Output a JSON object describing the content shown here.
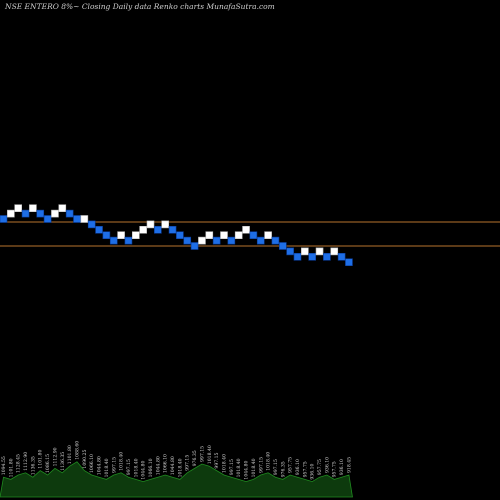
{
  "header": {
    "title": "NSE ENTERO 8%~  Closing Daily data  Renko  charts MunafaSutra.com"
  },
  "colors": {
    "background": "#000000",
    "up_brick": "#ffffff",
    "down_brick": "#1e6ee6",
    "down_brick_border": "#0a3d99",
    "support_line": "#b8732e",
    "volume_fill": "#0d3a0d",
    "volume_stroke": "#1f8a1f"
  },
  "chart_data": {
    "type": "renko",
    "title": "NSE ENTERO 8%~  Closing Daily data  Renko  charts MunafaSutra.com",
    "brick_size_units": 1,
    "bricks": [
      {
        "dir": "down",
        "level": 0
      },
      {
        "dir": "up",
        "level": 1
      },
      {
        "dir": "up",
        "level": 2
      },
      {
        "dir": "down",
        "level": 1
      },
      {
        "dir": "up",
        "level": 2
      },
      {
        "dir": "down",
        "level": 1
      },
      {
        "dir": "down",
        "level": 0
      },
      {
        "dir": "up",
        "level": 1
      },
      {
        "dir": "up",
        "level": 2
      },
      {
        "dir": "down",
        "level": 1
      },
      {
        "dir": "down",
        "level": 0
      },
      {
        "dir": "up",
        "level": 0
      },
      {
        "dir": "down",
        "level": -1
      },
      {
        "dir": "down",
        "level": -2
      },
      {
        "dir": "down",
        "level": -3
      },
      {
        "dir": "down",
        "level": -4
      },
      {
        "dir": "up",
        "level": -3
      },
      {
        "dir": "down",
        "level": -4
      },
      {
        "dir": "up",
        "level": -3
      },
      {
        "dir": "up",
        "level": -2
      },
      {
        "dir": "up",
        "level": -1
      },
      {
        "dir": "down",
        "level": -2
      },
      {
        "dir": "up",
        "level": -1
      },
      {
        "dir": "down",
        "level": -2
      },
      {
        "dir": "down",
        "level": -3
      },
      {
        "dir": "down",
        "level": -4
      },
      {
        "dir": "down",
        "level": -5
      },
      {
        "dir": "up",
        "level": -4
      },
      {
        "dir": "up",
        "level": -3
      },
      {
        "dir": "down",
        "level": -4
      },
      {
        "dir": "up",
        "level": -3
      },
      {
        "dir": "down",
        "level": -4
      },
      {
        "dir": "up",
        "level": -3
      },
      {
        "dir": "up",
        "level": -2
      },
      {
        "dir": "down",
        "level": -3
      },
      {
        "dir": "down",
        "level": -4
      },
      {
        "dir": "up",
        "level": -3
      },
      {
        "dir": "down",
        "level": -4
      },
      {
        "dir": "down",
        "level": -5
      },
      {
        "dir": "down",
        "level": -6
      },
      {
        "dir": "down",
        "level": -7
      },
      {
        "dir": "up",
        "level": -6
      },
      {
        "dir": "down",
        "level": -7
      },
      {
        "dir": "up",
        "level": -6
      },
      {
        "dir": "down",
        "level": -7
      },
      {
        "dir": "up",
        "level": -6
      },
      {
        "dir": "down",
        "level": -7
      },
      {
        "dir": "down",
        "level": -8
      }
    ],
    "reference_lines": [
      {
        "level": 0
      },
      {
        "level": -5
      }
    ],
    "volume": [
      9,
      8,
      10,
      11,
      9,
      12,
      10,
      13,
      11,
      14,
      16,
      12,
      10,
      9,
      8,
      10,
      11,
      9,
      8,
      7,
      8,
      9,
      10,
      9,
      8,
      11,
      13,
      15,
      14,
      12,
      10,
      9,
      8,
      7,
      8,
      10,
      11,
      9,
      8,
      10,
      9,
      8,
      7,
      9,
      10,
      8,
      9,
      10
    ],
    "volume_labels": [
      "1094.55",
      "1101.80",
      "1128.45",
      "1112.90",
      "1136.35",
      "1101.80",
      "1086.15",
      "1112.90",
      "1136.35",
      "1101.80",
      "1088.60",
      "1090.25",
      "1066.10",
      "1044.80",
      "1018.40",
      "997.15",
      "1018.40",
      "997.15",
      "1018.40",
      "1044.80",
      "1066.10",
      "1044.80",
      "1066.10",
      "1044.80",
      "1018.40",
      "997.15",
      "976.35",
      "997.15",
      "1018.40",
      "997.15",
      "1018.40",
      "997.15",
      "1018.40",
      "1044.80",
      "1018.40",
      "997.15",
      "1018.40",
      "997.15",
      "976.35",
      "957.75",
      "936.10",
      "957.75",
      "936.10",
      "957.75",
      "936.10",
      "957.75",
      "936.10",
      "918.45"
    ],
    "legend": "none",
    "grid": false
  }
}
